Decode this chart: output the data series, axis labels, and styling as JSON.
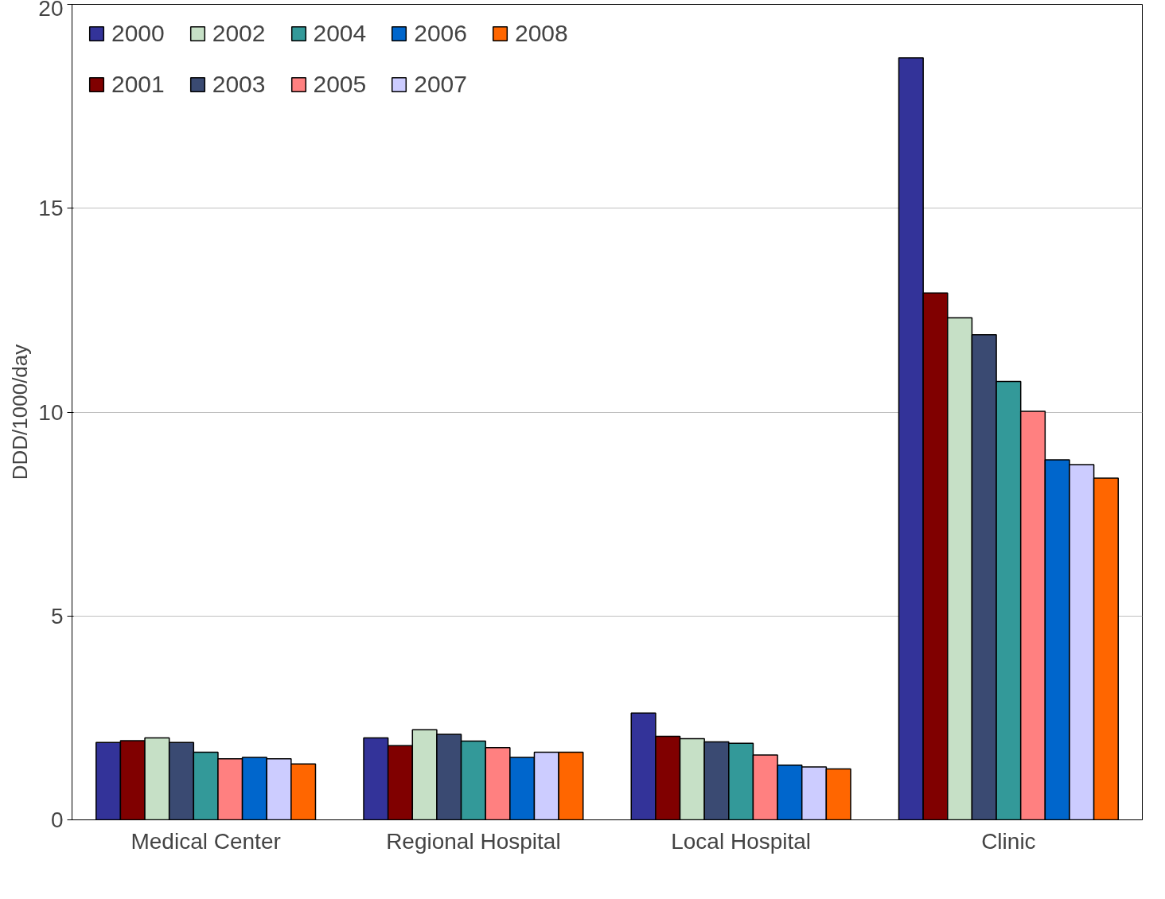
{
  "chart_data": {
    "type": "bar",
    "ylabel": "DDD/1000/day",
    "categories": [
      "Medical Center",
      "Regional Hospital",
      "Local Hospital",
      "Clinic"
    ],
    "series": [
      {
        "name": "2000",
        "color": "#333399",
        "values": [
          1.9,
          2.01,
          2.62,
          18.69
        ]
      },
      {
        "name": "2001",
        "color": "#800000",
        "values": [
          1.94,
          1.82,
          2.05,
          12.92
        ]
      },
      {
        "name": "2002",
        "color": "#c6e0c6",
        "values": [
          2.01,
          2.21,
          1.99,
          12.31
        ]
      },
      {
        "name": "2003",
        "color": "#3a4a72",
        "values": [
          1.9,
          2.1,
          1.91,
          11.9
        ]
      },
      {
        "name": "2004",
        "color": "#339999",
        "values": [
          1.66,
          1.93,
          1.88,
          10.75
        ]
      },
      {
        "name": "2005",
        "color": "#ff8080",
        "values": [
          1.5,
          1.77,
          1.59,
          10.02
        ]
      },
      {
        "name": "2006",
        "color": "#0066cc",
        "values": [
          1.53,
          1.53,
          1.34,
          8.83
        ]
      },
      {
        "name": "2007",
        "color": "#ccccff",
        "values": [
          1.5,
          1.66,
          1.3,
          8.71
        ]
      },
      {
        "name": "2008",
        "color": "#ff6600",
        "values": [
          1.37,
          1.66,
          1.25,
          8.38
        ]
      }
    ],
    "ylim": [
      0,
      20
    ],
    "yticks": [
      0,
      5,
      10,
      15,
      20
    ],
    "grid": "y",
    "legend": "top left"
  }
}
